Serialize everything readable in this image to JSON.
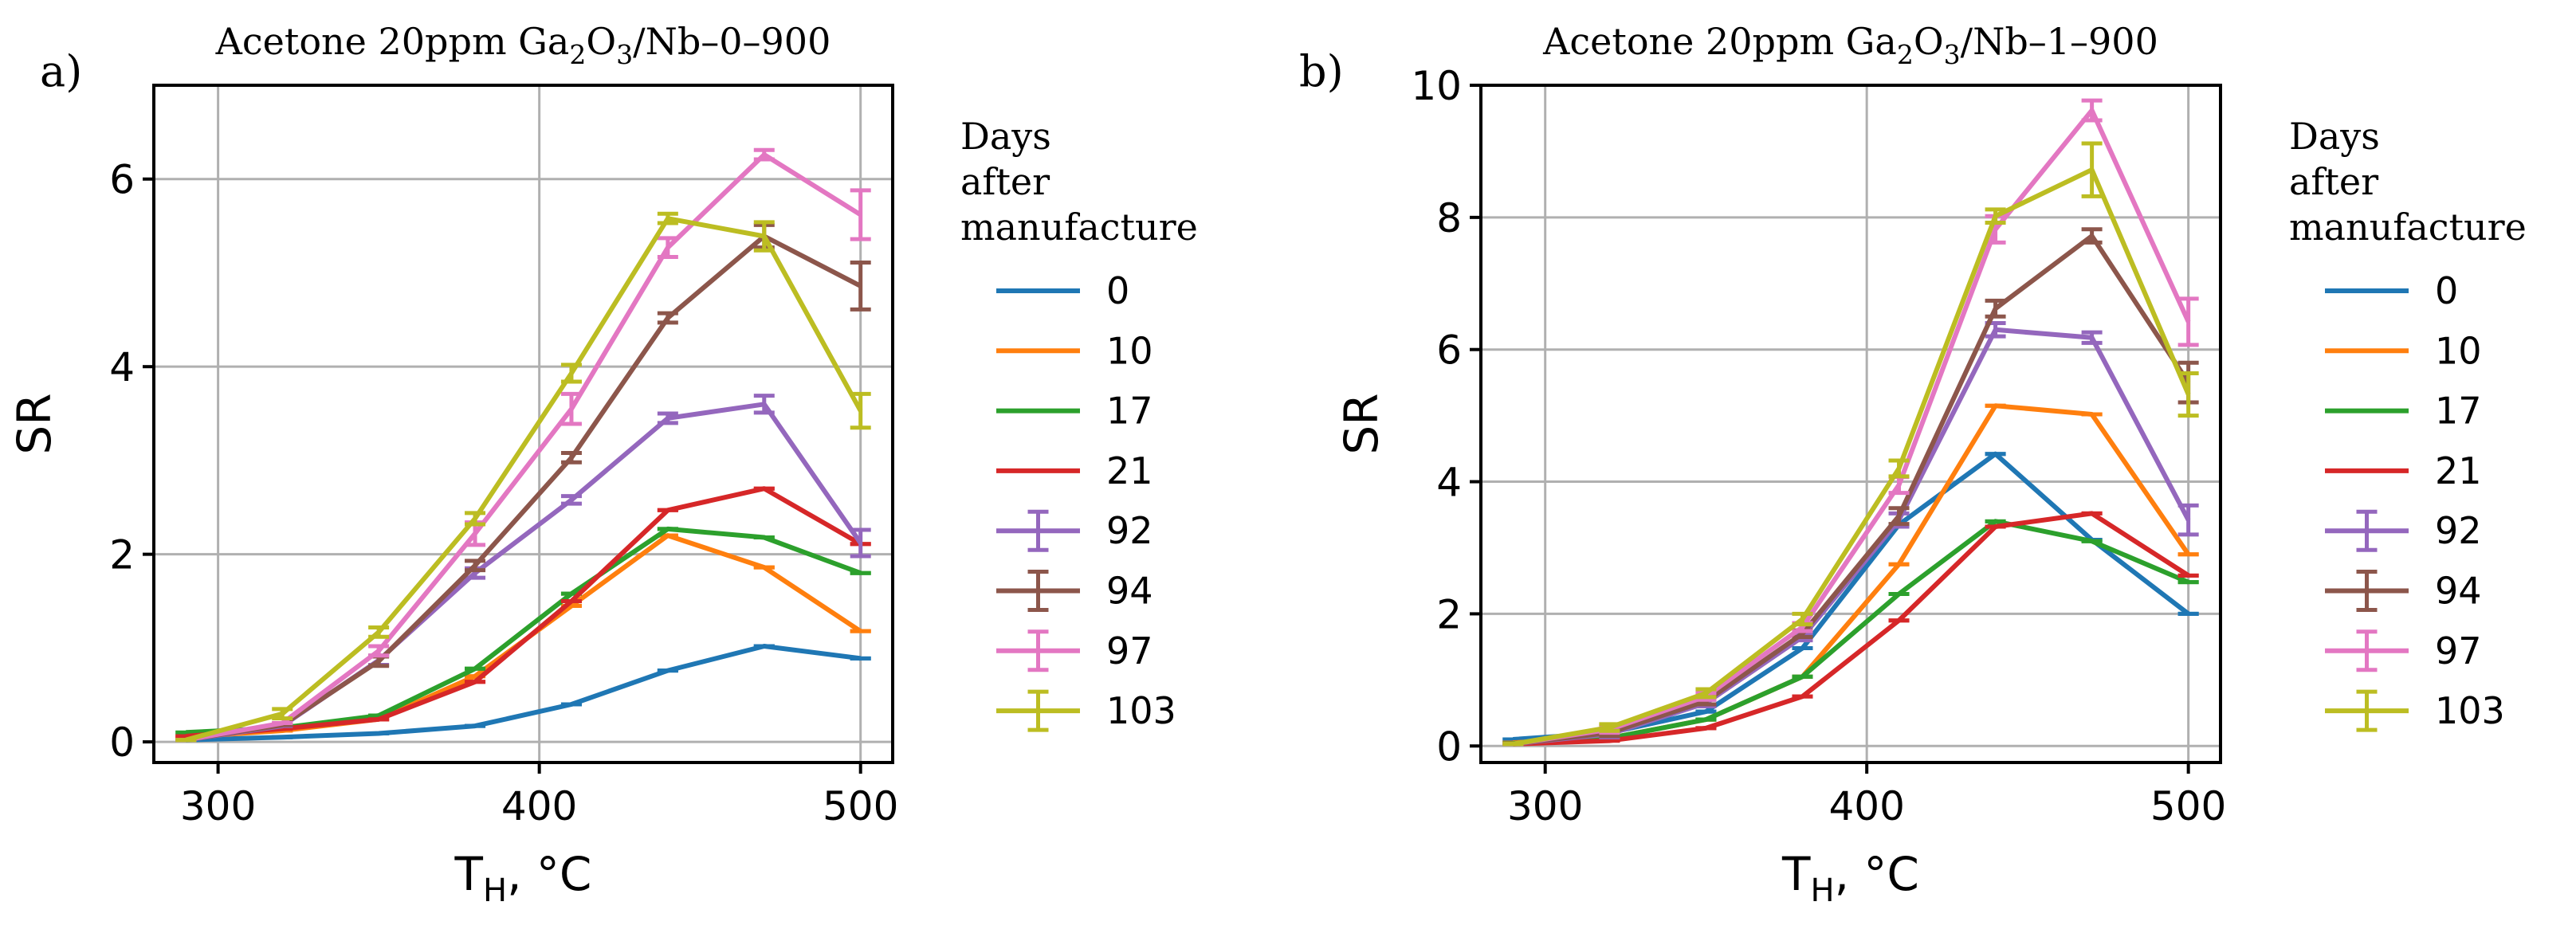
{
  "chart_data": [
    {
      "type": "line",
      "panel_label": "a)",
      "title_prefix": "Acetone 20ppm Ga",
      "title_sub1": "2",
      "title_mid": "O",
      "title_sub2": "3",
      "title_suffix": "/Nb–0–900",
      "xlabel_main": "T",
      "xlabel_sub": "H",
      "xlabel_suffix": ", °C",
      "ylabel": "SR",
      "xlim": [
        280,
        510
      ],
      "ylim": [
        -0.22,
        7.0
      ],
      "xticks": [
        300,
        400,
        500
      ],
      "yticks": [
        0,
        2,
        4,
        6
      ],
      "grid": true,
      "legend_title": [
        "Days",
        "after",
        "manufacture"
      ],
      "legend_position": "right",
      "x": [
        290,
        320,
        350,
        380,
        410,
        440,
        470,
        500
      ],
      "series": [
        {
          "name": "0",
          "color": "#1f77b4",
          "values": [
            0.02,
            0.05,
            0.09,
            0.17,
            0.4,
            0.76,
            1.02,
            0.89
          ],
          "errors": [
            0,
            0,
            0,
            0,
            0,
            0,
            0,
            0
          ]
        },
        {
          "name": "10",
          "color": "#ff7f0e",
          "values": [
            0.05,
            0.12,
            0.24,
            0.7,
            1.45,
            2.2,
            1.86,
            1.18
          ],
          "errors": [
            0,
            0,
            0,
            0,
            0,
            0,
            0,
            0
          ]
        },
        {
          "name": "17",
          "color": "#2ca02c",
          "values": [
            0.1,
            0.15,
            0.28,
            0.78,
            1.58,
            2.27,
            2.18,
            1.8
          ],
          "errors": [
            0,
            0,
            0,
            0,
            0,
            0,
            0,
            0
          ]
        },
        {
          "name": "21",
          "color": "#d62728",
          "values": [
            0.06,
            0.14,
            0.24,
            0.64,
            1.5,
            2.47,
            2.7,
            2.11
          ],
          "errors": [
            0,
            0,
            0,
            0,
            0,
            0,
            0,
            0
          ]
        },
        {
          "name": "92",
          "color": "#9467bd",
          "values": [
            0.02,
            0.17,
            0.87,
            1.8,
            2.58,
            3.45,
            3.6,
            2.12
          ],
          "errors": [
            0,
            0,
            0.05,
            0.05,
            0.04,
            0.05,
            0.09,
            0.14
          ]
        },
        {
          "name": "94",
          "color": "#8c564b",
          "values": [
            0.02,
            0.18,
            0.86,
            1.88,
            3.03,
            4.52,
            5.39,
            4.86
          ],
          "errors": [
            0,
            0,
            0.05,
            0.05,
            0.05,
            0.05,
            0.12,
            0.25
          ]
        },
        {
          "name": "97",
          "color": "#e377c2",
          "values": [
            0.02,
            0.2,
            0.97,
            2.22,
            3.55,
            5.27,
            6.26,
            5.62
          ],
          "errors": [
            0,
            0,
            0.05,
            0.12,
            0.16,
            0.1,
            0.05,
            0.26
          ]
        },
        {
          "name": "103",
          "color": "#bcbd22",
          "values": [
            0.02,
            0.3,
            1.17,
            2.38,
            3.93,
            5.58,
            5.39,
            3.53
          ],
          "errors": [
            0,
            0.05,
            0.05,
            0.06,
            0.09,
            0.05,
            0.15,
            0.18
          ]
        }
      ]
    },
    {
      "type": "line",
      "panel_label": "b)",
      "title_prefix": "Acetone 20ppm Ga",
      "title_sub1": "2",
      "title_mid": "O",
      "title_sub2": "3",
      "title_suffix": "/Nb–1–900",
      "xlabel_main": "T",
      "xlabel_sub": "H",
      "xlabel_suffix": ", °C",
      "ylabel": "SR",
      "xlim": [
        280,
        510
      ],
      "ylim": [
        -0.25,
        10.0
      ],
      "xticks": [
        300,
        400,
        500
      ],
      "yticks": [
        0,
        2,
        4,
        6,
        8,
        10
      ],
      "grid": true,
      "legend_title": [
        "Days",
        "after",
        "manufacture"
      ],
      "legend_position": "right",
      "x": [
        290,
        320,
        350,
        380,
        410,
        440,
        470,
        500
      ],
      "series": [
        {
          "name": "0",
          "color": "#1f77b4",
          "values": [
            0.1,
            0.2,
            0.52,
            1.48,
            3.35,
            4.42,
            3.12,
            2.0
          ],
          "errors": [
            0,
            0,
            0,
            0,
            0,
            0,
            0,
            0
          ]
        },
        {
          "name": "10",
          "color": "#ff7f0e",
          "values": [
            0.05,
            0.12,
            0.4,
            1.05,
            2.75,
            5.15,
            5.02,
            2.9
          ],
          "errors": [
            0,
            0,
            0,
            0,
            0,
            0,
            0,
            0
          ]
        },
        {
          "name": "17",
          "color": "#2ca02c",
          "values": [
            0.04,
            0.12,
            0.4,
            1.05,
            2.3,
            3.4,
            3.1,
            2.48
          ],
          "errors": [
            0,
            0,
            0,
            0,
            0,
            0,
            0,
            0
          ]
        },
        {
          "name": "21",
          "color": "#d62728",
          "values": [
            0.03,
            0.08,
            0.27,
            0.75,
            1.9,
            3.32,
            3.52,
            2.58
          ],
          "errors": [
            0,
            0,
            0,
            0,
            0,
            0,
            0,
            0
          ]
        },
        {
          "name": "92",
          "color": "#9467bd",
          "values": [
            0.03,
            0.18,
            0.65,
            1.65,
            3.42,
            6.3,
            6.18,
            3.42
          ],
          "errors": [
            0,
            0.05,
            0.05,
            0.05,
            0.1,
            0.1,
            0.08,
            0.22
          ]
        },
        {
          "name": "94",
          "color": "#8c564b",
          "values": [
            0.03,
            0.2,
            0.68,
            1.7,
            3.48,
            6.62,
            7.72,
            5.5
          ],
          "errors": [
            0,
            0.05,
            0.05,
            0.05,
            0.12,
            0.12,
            0.1,
            0.3
          ]
        },
        {
          "name": "97",
          "color": "#e377c2",
          "values": [
            0.03,
            0.25,
            0.75,
            1.8,
            3.95,
            7.82,
            9.62,
            6.42
          ],
          "errors": [
            0,
            0.05,
            0.05,
            0.06,
            0.12,
            0.2,
            0.15,
            0.35
          ]
        },
        {
          "name": "103",
          "color": "#bcbd22",
          "values": [
            0.03,
            0.28,
            0.8,
            1.92,
            4.2,
            8.02,
            8.72,
            5.32
          ],
          "errors": [
            0,
            0.05,
            0.06,
            0.08,
            0.12,
            0.1,
            0.4,
            0.32
          ]
        }
      ]
    }
  ]
}
